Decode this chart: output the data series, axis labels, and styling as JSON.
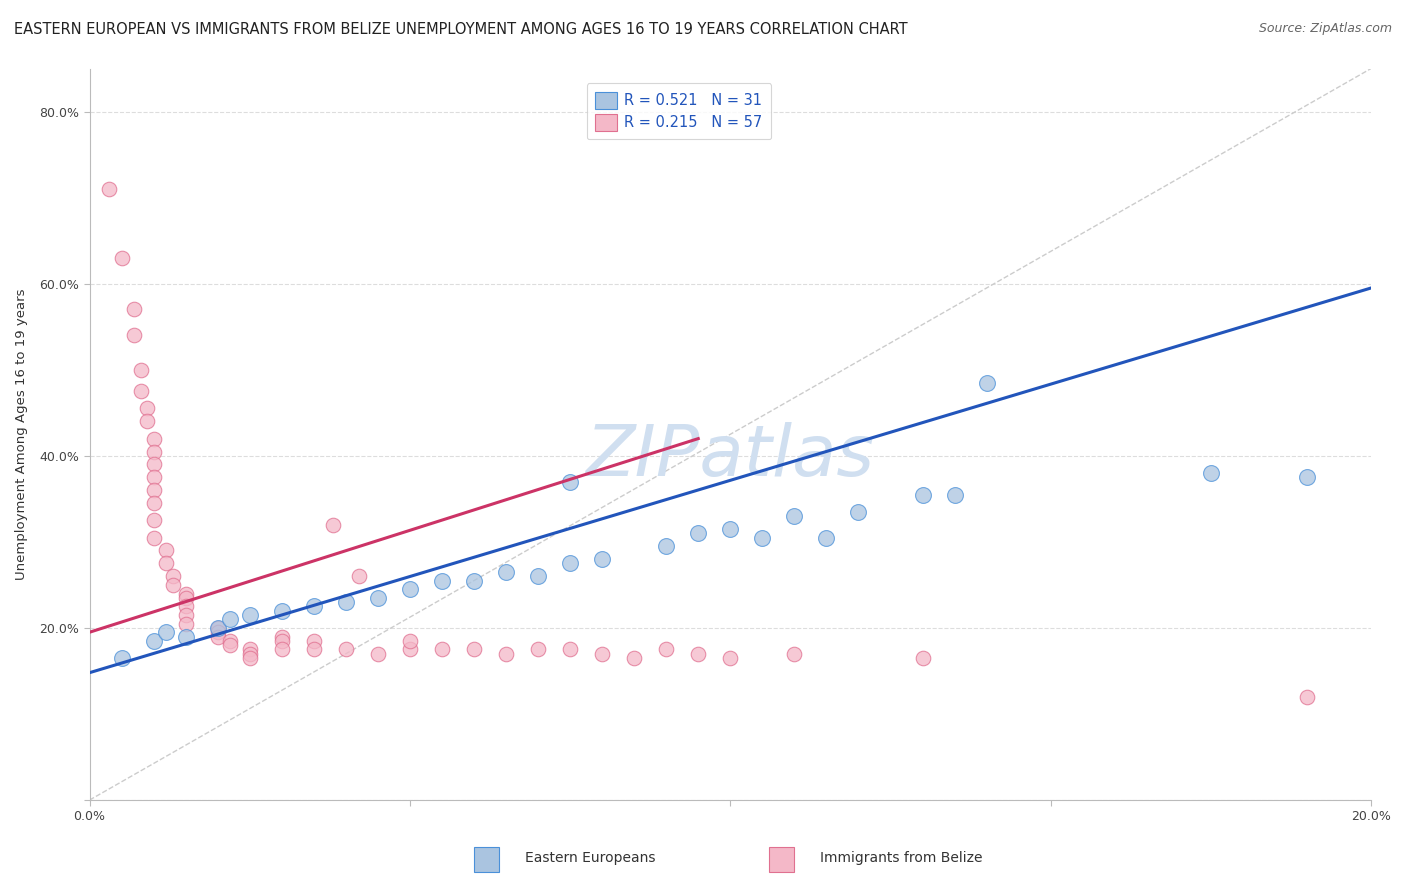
{
  "title": "EASTERN EUROPEAN VS IMMIGRANTS FROM BELIZE UNEMPLOYMENT AMONG AGES 16 TO 19 YEARS CORRELATION CHART",
  "source": "Source: ZipAtlas.com",
  "ylabel": "Unemployment Among Ages 16 to 19 years",
  "xlim": [
    0.0,
    0.2
  ],
  "ylim": [
    0.0,
    0.85
  ],
  "xticks": [
    0.0,
    0.05,
    0.1,
    0.15,
    0.2
  ],
  "yticks": [
    0.0,
    0.2,
    0.4,
    0.6,
    0.8
  ],
  "xticklabels": [
    "0.0%",
    "",
    "",
    "",
    "20.0%"
  ],
  "yticklabels": [
    "",
    "20.0%",
    "40.0%",
    "60.0%",
    "80.0%"
  ],
  "blue_R": 0.521,
  "blue_N": 31,
  "pink_R": 0.215,
  "pink_N": 57,
  "blue_scatter": [
    [
      0.005,
      0.165
    ],
    [
      0.01,
      0.185
    ],
    [
      0.012,
      0.195
    ],
    [
      0.015,
      0.19
    ],
    [
      0.02,
      0.2
    ],
    [
      0.022,
      0.21
    ],
    [
      0.025,
      0.215
    ],
    [
      0.03,
      0.22
    ],
    [
      0.035,
      0.225
    ],
    [
      0.04,
      0.23
    ],
    [
      0.045,
      0.235
    ],
    [
      0.05,
      0.245
    ],
    [
      0.055,
      0.255
    ],
    [
      0.06,
      0.255
    ],
    [
      0.065,
      0.265
    ],
    [
      0.07,
      0.26
    ],
    [
      0.075,
      0.275
    ],
    [
      0.08,
      0.28
    ],
    [
      0.09,
      0.295
    ],
    [
      0.095,
      0.31
    ],
    [
      0.1,
      0.315
    ],
    [
      0.105,
      0.305
    ],
    [
      0.11,
      0.33
    ],
    [
      0.115,
      0.305
    ],
    [
      0.075,
      0.37
    ],
    [
      0.12,
      0.335
    ],
    [
      0.13,
      0.355
    ],
    [
      0.135,
      0.355
    ],
    [
      0.14,
      0.485
    ],
    [
      0.175,
      0.38
    ],
    [
      0.19,
      0.375
    ]
  ],
  "pink_scatter": [
    [
      0.003,
      0.71
    ],
    [
      0.005,
      0.63
    ],
    [
      0.007,
      0.57
    ],
    [
      0.007,
      0.54
    ],
    [
      0.008,
      0.5
    ],
    [
      0.008,
      0.475
    ],
    [
      0.009,
      0.455
    ],
    [
      0.009,
      0.44
    ],
    [
      0.01,
      0.42
    ],
    [
      0.01,
      0.405
    ],
    [
      0.01,
      0.39
    ],
    [
      0.01,
      0.375
    ],
    [
      0.01,
      0.36
    ],
    [
      0.01,
      0.345
    ],
    [
      0.01,
      0.325
    ],
    [
      0.01,
      0.305
    ],
    [
      0.012,
      0.29
    ],
    [
      0.012,
      0.275
    ],
    [
      0.013,
      0.26
    ],
    [
      0.013,
      0.25
    ],
    [
      0.015,
      0.24
    ],
    [
      0.015,
      0.235
    ],
    [
      0.015,
      0.225
    ],
    [
      0.015,
      0.215
    ],
    [
      0.015,
      0.205
    ],
    [
      0.02,
      0.2
    ],
    [
      0.02,
      0.195
    ],
    [
      0.02,
      0.19
    ],
    [
      0.022,
      0.185
    ],
    [
      0.022,
      0.18
    ],
    [
      0.025,
      0.175
    ],
    [
      0.025,
      0.17
    ],
    [
      0.025,
      0.165
    ],
    [
      0.03,
      0.19
    ],
    [
      0.03,
      0.185
    ],
    [
      0.03,
      0.175
    ],
    [
      0.035,
      0.185
    ],
    [
      0.035,
      0.175
    ],
    [
      0.038,
      0.32
    ],
    [
      0.04,
      0.175
    ],
    [
      0.042,
      0.26
    ],
    [
      0.045,
      0.17
    ],
    [
      0.05,
      0.175
    ],
    [
      0.05,
      0.185
    ],
    [
      0.055,
      0.175
    ],
    [
      0.06,
      0.175
    ],
    [
      0.065,
      0.17
    ],
    [
      0.07,
      0.175
    ],
    [
      0.075,
      0.175
    ],
    [
      0.08,
      0.17
    ],
    [
      0.085,
      0.165
    ],
    [
      0.09,
      0.175
    ],
    [
      0.095,
      0.17
    ],
    [
      0.1,
      0.165
    ],
    [
      0.11,
      0.17
    ],
    [
      0.13,
      0.165
    ],
    [
      0.19,
      0.12
    ]
  ],
  "blue_line_x": [
    0.0,
    0.2
  ],
  "blue_line_y": [
    0.148,
    0.595
  ],
  "pink_line_x": [
    0.0,
    0.095
  ],
  "pink_line_y": [
    0.195,
    0.42
  ],
  "diag_line_x": [
    0.0,
    0.2
  ],
  "diag_line_y": [
    0.0,
    0.85
  ],
  "blue_fill": "#aac4e0",
  "pink_fill": "#f4b8c8",
  "blue_edge": "#4a90d9",
  "pink_edge": "#e07090",
  "blue_line_color": "#2255bb",
  "pink_line_color": "#cc3366",
  "diag_line_color": "#cccccc",
  "grid_color": "#dddddd",
  "bg_color": "#ffffff",
  "watermark_color": "#d0dff0",
  "title_color": "#222222",
  "source_color": "#666666"
}
